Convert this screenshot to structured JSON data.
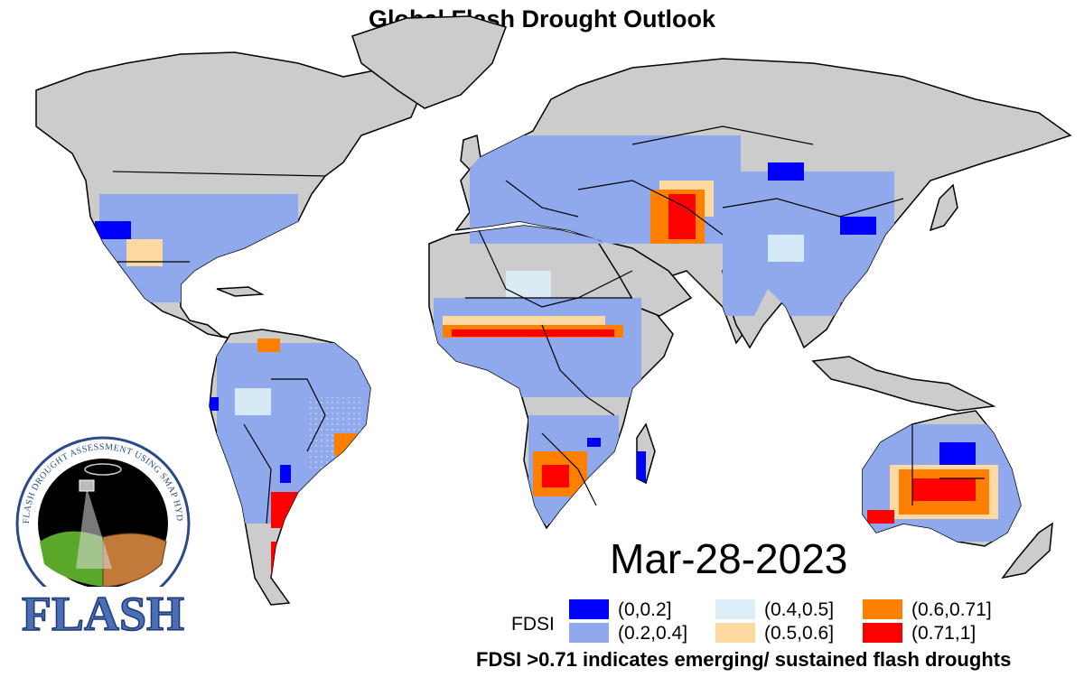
{
  "title": "Global Flash Drought Outlook",
  "date": "Mar-28-2023",
  "legend": {
    "title": "FDSI",
    "items": [
      {
        "label": "(0,0.2]",
        "color": "#0000ff"
      },
      {
        "label": "(0.2,0.4]",
        "color": "#8fa9ec"
      },
      {
        "label": "(0.4,0.5]",
        "color": "#dceef7"
      },
      {
        "label": "(0.5,0.6]",
        "color": "#fcd9a0"
      },
      {
        "label": "(0.6,0.71]",
        "color": "#ff7f00"
      },
      {
        "label": "(0.71,1]",
        "color": "#ff0000"
      }
    ]
  },
  "footnote": "FDSI >0.71 indicates emerging/ sustained flash droughts",
  "logo": {
    "arc_text": "FLASH DROUGHT ASSESSMENT USING SMAP HYDROLOGY",
    "wordmark": "FLASH"
  },
  "colors": {
    "land": "#cccccc",
    "border": "#000000",
    "ocean": "#ffffff"
  }
}
